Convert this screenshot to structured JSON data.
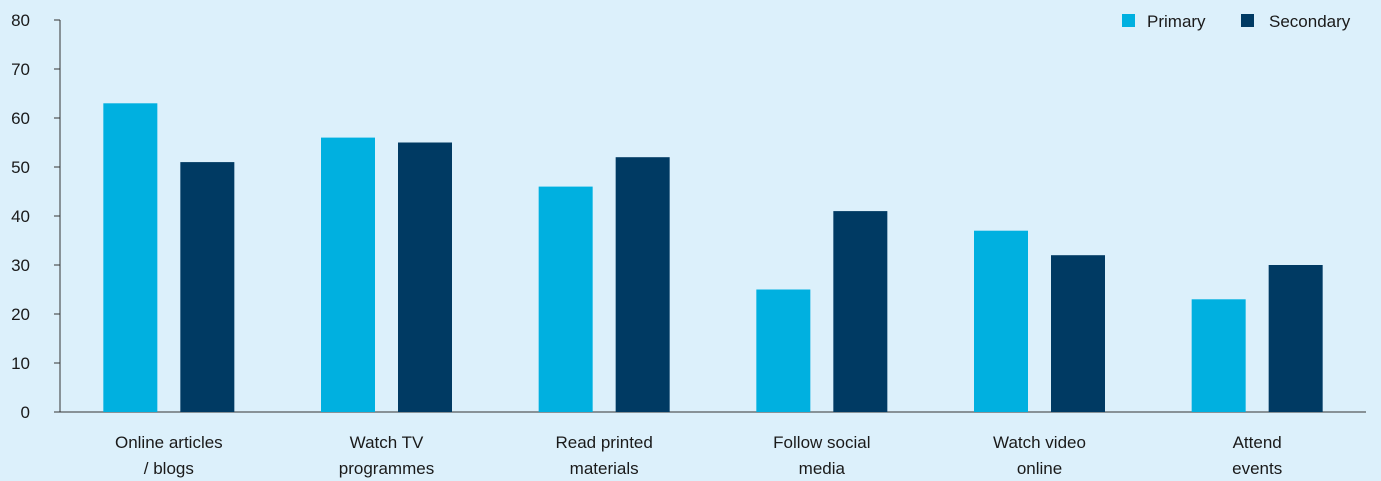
{
  "chart_data": {
    "type": "bar",
    "categories": [
      [
        "Online articles",
        "/ blogs"
      ],
      [
        "Watch TV",
        "programmes"
      ],
      [
        "Read printed",
        "materials"
      ],
      [
        "Follow social",
        "media"
      ],
      [
        "Watch video",
        "online"
      ],
      [
        "Attend",
        "events"
      ]
    ],
    "series": [
      {
        "name": "Primary",
        "color": "#00b0e0",
        "values": [
          63,
          56,
          46,
          25,
          37,
          23
        ]
      },
      {
        "name": "Secondary",
        "color": "#003a63",
        "values": [
          51,
          55,
          52,
          41,
          32,
          30
        ]
      }
    ],
    "yticks": [
      0,
      10,
      20,
      30,
      40,
      50,
      60,
      70,
      80
    ],
    "ylim": [
      0,
      80
    ],
    "legend_position": "top-right",
    "grid": false
  }
}
